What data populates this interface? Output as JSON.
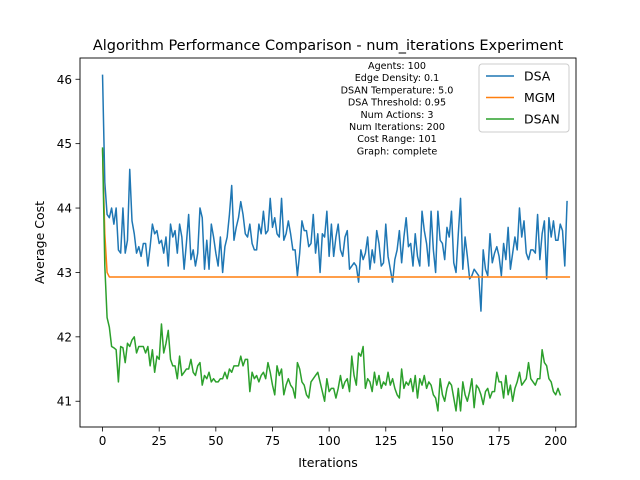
{
  "chart_data": {
    "type": "line",
    "title": "Algorithm Performance Comparison - num_iterations Experiment",
    "xlabel": "Iterations",
    "ylabel": "Average Cost",
    "xlim": [
      -9.95,
      208.95
    ],
    "ylim": [
      40.6,
      46.33
    ],
    "x_ticks": [
      0,
      25,
      50,
      75,
      100,
      125,
      150,
      175,
      200
    ],
    "y_ticks": [
      41,
      42,
      43,
      44,
      45,
      46
    ],
    "grid": false,
    "legend_position": "top-right",
    "annotation": [
      "Agents: 100",
      "Edge Density: 0.1",
      "DSAN Temperature: 5.0",
      "DSA Threshold: 0.95",
      "Num Actions: 3",
      "Num Iterations: 200",
      "Cost Range: 101",
      "Graph: complete"
    ],
    "series": [
      {
        "name": "DSA",
        "color": "#1f77b4",
        "values": [
          46.06,
          44.4,
          43.9,
          43.85,
          44.0,
          43.75,
          44.0,
          43.35,
          43.3,
          44.0,
          43.3,
          43.5,
          44.6,
          43.8,
          43.6,
          43.3,
          43.4,
          43.25,
          43.45,
          43.45,
          43.1,
          43.4,
          43.75,
          43.6,
          43.65,
          43.45,
          43.5,
          43.3,
          43.55,
          43.1,
          43.75,
          43.55,
          43.65,
          43.3,
          43.75,
          43.55,
          43.05,
          43.45,
          43.9,
          43.2,
          43.35,
          43.1,
          43.3,
          44.0,
          43.85,
          43.05,
          43.5,
          43.05,
          43.75,
          43.55,
          43.3,
          43.1,
          43.55,
          43.0,
          43.4,
          43.55,
          43.9,
          44.35,
          43.5,
          43.7,
          43.85,
          44.1,
          43.9,
          43.6,
          43.55,
          43.75,
          43.45,
          43.35,
          43.35,
          43.75,
          43.6,
          43.95,
          43.6,
          43.65,
          44.15,
          43.7,
          43.85,
          43.6,
          43.55,
          44.15,
          43.5,
          43.6,
          43.8,
          43.6,
          43.35,
          43.35,
          42.95,
          43.3,
          43.8,
          43.65,
          43.65,
          43.4,
          43.45,
          43.9,
          43.3,
          43.6,
          43.0,
          43.6,
          43.55,
          43.95,
          43.25,
          43.75,
          43.25,
          43.55,
          43.75,
          43.35,
          43.25,
          43.55,
          43.65,
          43.05,
          43.1,
          43.15,
          43.1,
          42.85,
          43.35,
          43.2,
          43.3,
          43.55,
          43.05,
          43.35,
          43.15,
          43.65,
          43.45,
          43.1,
          43.15,
          43.75,
          43.25,
          43.05,
          42.85,
          43.2,
          43.35,
          43.65,
          43.15,
          43.55,
          43.85,
          43.4,
          43.45,
          43.1,
          43.6,
          43.25,
          43.1,
          43.95,
          43.65,
          43.45,
          43.1,
          43.95,
          43.35,
          43.0,
          43.95,
          43.5,
          43.45,
          43.2,
          43.7,
          43.55,
          43.95,
          43.15,
          43.0,
          43.6,
          44.15,
          43.05,
          43.55,
          43.25,
          42.9,
          42.95,
          43.05,
          43.0,
          42.95,
          42.4,
          43.35,
          43.05,
          42.95,
          43.6,
          43.15,
          43.3,
          43.4,
          43.25,
          42.95,
          43.45,
          43.2,
          43.7,
          43.05,
          43.3,
          43.55,
          43.35,
          44.0,
          43.55,
          43.8,
          43.3,
          43.2,
          43.35,
          43.35,
          43.3,
          43.9,
          43.2,
          43.6,
          43.8,
          42.9,
          43.85,
          43.55,
          43.8,
          43.5,
          43.5,
          43.75,
          43.65,
          43.1,
          44.1
        ]
      },
      {
        "name": "MGM",
        "color": "#ff7f0e",
        "values": [
          44.9,
          43.6,
          43.0,
          42.93,
          42.93,
          42.93,
          42.93,
          42.93,
          42.93,
          42.93,
          42.93,
          42.93,
          42.93,
          42.93,
          42.93,
          42.93,
          42.93,
          42.93,
          42.93,
          42.93,
          42.93,
          42.93,
          42.93,
          42.93,
          42.93,
          42.93,
          42.93,
          42.93,
          42.93,
          42.93,
          42.93,
          42.93,
          42.93,
          42.93,
          42.93,
          42.93,
          42.93,
          42.93,
          42.93,
          42.93,
          42.93,
          42.93,
          42.93,
          42.93,
          42.93,
          42.93,
          42.93,
          42.93,
          42.93,
          42.93,
          42.93,
          42.93,
          42.93,
          42.93,
          42.93,
          42.93,
          42.93,
          42.93,
          42.93,
          42.93,
          42.93,
          42.93,
          42.93,
          42.93,
          42.93,
          42.93,
          42.93,
          42.93,
          42.93,
          42.93,
          42.93,
          42.93,
          42.93,
          42.93,
          42.93,
          42.93,
          42.93,
          42.93,
          42.93,
          42.93,
          42.93,
          42.93,
          42.93,
          42.93,
          42.93,
          42.93,
          42.93,
          42.93,
          42.93,
          42.93,
          42.93,
          42.93,
          42.93,
          42.93,
          42.93,
          42.93,
          42.93,
          42.93,
          42.93,
          42.93,
          42.93,
          42.93,
          42.93,
          42.93,
          42.93,
          42.93,
          42.93,
          42.93,
          42.93,
          42.93,
          42.93,
          42.93,
          42.93,
          42.93,
          42.93,
          42.93,
          42.93,
          42.93,
          42.93,
          42.93,
          42.93,
          42.93,
          42.93,
          42.93,
          42.93,
          42.93,
          42.93,
          42.93,
          42.93,
          42.93,
          42.93,
          42.93,
          42.93,
          42.93,
          42.93,
          42.93,
          42.93,
          42.93,
          42.93,
          42.93,
          42.93,
          42.93,
          42.93,
          42.93,
          42.93,
          42.93,
          42.93,
          42.93,
          42.93,
          42.93,
          42.93,
          42.93,
          42.93,
          42.93,
          42.93,
          42.93,
          42.93,
          42.93,
          42.93,
          42.93,
          42.93,
          42.93,
          42.93,
          42.93,
          42.93,
          42.93,
          42.93,
          42.93,
          42.93,
          42.93,
          42.93,
          42.93,
          42.93,
          42.93,
          42.93,
          42.93,
          42.93,
          42.93,
          42.93,
          42.93,
          42.93,
          42.93,
          42.93,
          42.93,
          42.93,
          42.93,
          42.93,
          42.93,
          42.93,
          42.93,
          42.93,
          42.93,
          42.93,
          42.93,
          42.93,
          42.93,
          42.93,
          42.93,
          42.93,
          42.93,
          42.93,
          42.93,
          42.93,
          42.93,
          42.93,
          42.93,
          42.93
        ]
      },
      {
        "name": "DSAN",
        "color": "#2ca02c",
        "values": [
          44.93,
          43.1,
          42.3,
          42.15,
          41.85,
          41.83,
          41.8,
          41.3,
          41.85,
          41.83,
          41.6,
          41.9,
          41.85,
          41.95,
          42.0,
          41.75,
          41.85,
          41.85,
          41.85,
          41.75,
          41.85,
          41.55,
          41.8,
          41.45,
          41.7,
          41.65,
          42.2,
          41.75,
          41.9,
          42.1,
          41.65,
          41.55,
          41.55,
          41.35,
          41.7,
          41.4,
          41.45,
          41.5,
          41.5,
          41.65,
          41.45,
          41.4,
          41.55,
          41.6,
          41.25,
          41.4,
          41.35,
          41.45,
          41.3,
          41.35,
          41.3,
          41.3,
          41.35,
          41.35,
          41.45,
          41.35,
          41.5,
          41.45,
          41.55,
          41.55,
          41.55,
          41.7,
          41.55,
          41.65,
          41.65,
          41.15,
          41.45,
          41.35,
          41.4,
          41.3,
          41.4,
          41.45,
          41.35,
          41.6,
          41.45,
          41.25,
          41.1,
          41.55,
          41.4,
          41.5,
          41.1,
          41.25,
          41.35,
          41.25,
          41.2,
          41.05,
          41.6,
          41.5,
          41.3,
          41.25,
          41.1,
          41.05,
          41.3,
          41.35,
          41.4,
          41.45,
          41.3,
          41.15,
          41.0,
          41.35,
          41.15,
          41.2,
          41.2,
          41.05,
          41.2,
          41.4,
          41.2,
          41.3,
          41.35,
          41.15,
          41.7,
          41.4,
          41.25,
          41.75,
          41.7,
          41.85,
          41.2,
          41.35,
          41.3,
          41.15,
          41.45,
          41.25,
          41.4,
          41.2,
          41.3,
          41.25,
          41.45,
          41.25,
          41.35,
          41.2,
          41.1,
          41.05,
          41.5,
          41.2,
          41.3,
          41.25,
          41.35,
          41.15,
          41.4,
          41.05,
          41.35,
          41.25,
          41.4,
          41.2,
          41.3,
          41.25,
          41.1,
          41.05,
          40.85,
          41.35,
          41.1,
          41.0,
          41.2,
          41.3,
          41.25,
          41.05,
          40.85,
          41.2,
          40.85,
          41.3,
          41.1,
          41.0,
          41.15,
          41.35,
          40.9,
          41.25,
          41.2,
          41.1,
          40.95,
          41.15,
          41.2,
          41.05,
          41.15,
          41.15,
          41.45,
          41.3,
          41.3,
          41.05,
          41.4,
          41.1,
          41.25,
          41.0,
          41.2,
          41.3,
          41.45,
          41.25,
          41.3,
          41.35,
          41.6,
          41.35,
          41.3,
          41.25,
          41.35,
          41.35,
          41.8,
          41.6,
          41.55,
          41.35,
          41.3,
          41.15,
          41.1,
          41.2,
          41.1
        ]
      }
    ]
  }
}
